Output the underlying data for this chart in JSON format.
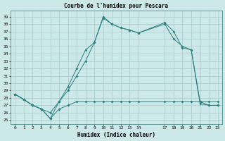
{
  "title": "Courbe de l'humidex pour Pescara",
  "xlabel": "Humidex (Indice chaleur)",
  "bg_color": "#cce8e8",
  "line_color": "#2d8080",
  "grid_color": "#aacccc",
  "xlim": [
    -0.5,
    23.5
  ],
  "ylim": [
    24.5,
    39.8
  ],
  "yticks": [
    25,
    26,
    27,
    28,
    29,
    30,
    31,
    32,
    33,
    34,
    35,
    36,
    37,
    38,
    39
  ],
  "xticks": [
    0,
    1,
    2,
    3,
    4,
    5,
    6,
    7,
    8,
    9,
    10,
    11,
    12,
    13,
    14,
    17,
    18,
    19,
    20,
    21,
    22,
    23
  ],
  "line1_x": [
    0,
    1,
    2,
    3,
    4,
    5,
    6,
    7,
    8,
    9,
    10,
    11,
    12,
    13,
    14,
    17,
    18,
    19,
    20,
    21,
    22,
    23
  ],
  "line1_y": [
    28.5,
    27.8,
    27.0,
    26.5,
    25.2,
    26.5,
    27.0,
    27.5,
    27.5,
    27.5,
    27.5,
    27.5,
    27.5,
    27.5,
    27.5,
    27.5,
    27.5,
    27.5,
    27.5,
    27.5,
    27.5,
    27.5
  ],
  "line2_x": [
    0,
    1,
    2,
    3,
    4,
    5,
    6,
    7,
    8,
    9,
    10,
    11,
    12,
    13,
    14,
    17,
    18,
    19,
    20,
    21,
    22,
    23
  ],
  "line2_y": [
    28.5,
    27.8,
    27.0,
    26.5,
    26.0,
    27.5,
    29.5,
    32.0,
    34.5,
    35.5,
    38.8,
    38.0,
    37.5,
    37.2,
    36.8,
    38.0,
    36.0,
    35.0,
    34.5,
    27.5,
    27.0,
    27.0
  ],
  "line3_x": [
    0,
    2,
    3,
    4,
    5,
    6,
    7,
    8,
    9,
    10,
    11,
    12,
    13,
    14,
    17,
    18,
    19,
    20,
    21,
    22,
    23
  ],
  "line3_y": [
    28.5,
    27.0,
    26.5,
    25.2,
    27.5,
    29.0,
    31.0,
    33.0,
    35.5,
    39.0,
    38.0,
    37.5,
    37.2,
    36.8,
    38.2,
    37.0,
    34.8,
    34.5,
    27.2,
    27.0,
    27.0
  ]
}
